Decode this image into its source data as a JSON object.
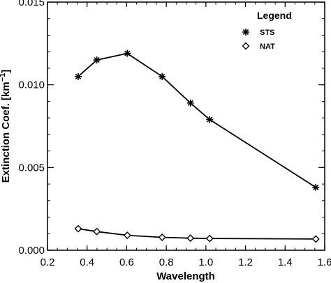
{
  "chart_data": {
    "type": "line",
    "xlabel": "Wavelength",
    "ylabel": "Extinction Coef. [km",
    "ylabel_superscript": "−1",
    "ylabel_suffix": "]",
    "xlim": [
      0.2,
      1.6
    ],
    "ylim": [
      0.0,
      0.015
    ],
    "x_ticks": [
      0.2,
      0.4,
      0.6,
      0.8,
      1.0,
      1.2,
      1.4,
      1.6
    ],
    "x_tick_labels": [
      "0.2",
      "0.4",
      "0.6",
      "0.8",
      "1.0",
      "1.2",
      "1.4",
      "1.6"
    ],
    "y_ticks": [
      0.0,
      0.005,
      0.01,
      0.015
    ],
    "y_tick_labels": [
      "0.000",
      "0.005",
      "0.010",
      "0.015"
    ],
    "grid": false,
    "legend": {
      "title": "Legend",
      "placement": "top-right",
      "entries": [
        {
          "label": "STS",
          "marker": "asterisk"
        },
        {
          "label": "NAT",
          "marker": "diamond"
        }
      ]
    },
    "series": [
      {
        "name": "STS",
        "marker": "asterisk",
        "x": [
          0.355,
          0.449,
          0.603,
          0.779,
          0.922,
          1.019,
          1.555
        ],
        "y": [
          0.0105,
          0.0115,
          0.0119,
          0.0105,
          0.0089,
          0.0079,
          0.0038
        ]
      },
      {
        "name": "NAT",
        "marker": "diamond",
        "x": [
          0.355,
          0.449,
          0.603,
          0.779,
          0.922,
          1.019,
          1.555
        ],
        "y": [
          0.0013,
          0.00113,
          0.0009,
          0.00078,
          0.00073,
          0.00071,
          0.00068
        ]
      }
    ]
  }
}
